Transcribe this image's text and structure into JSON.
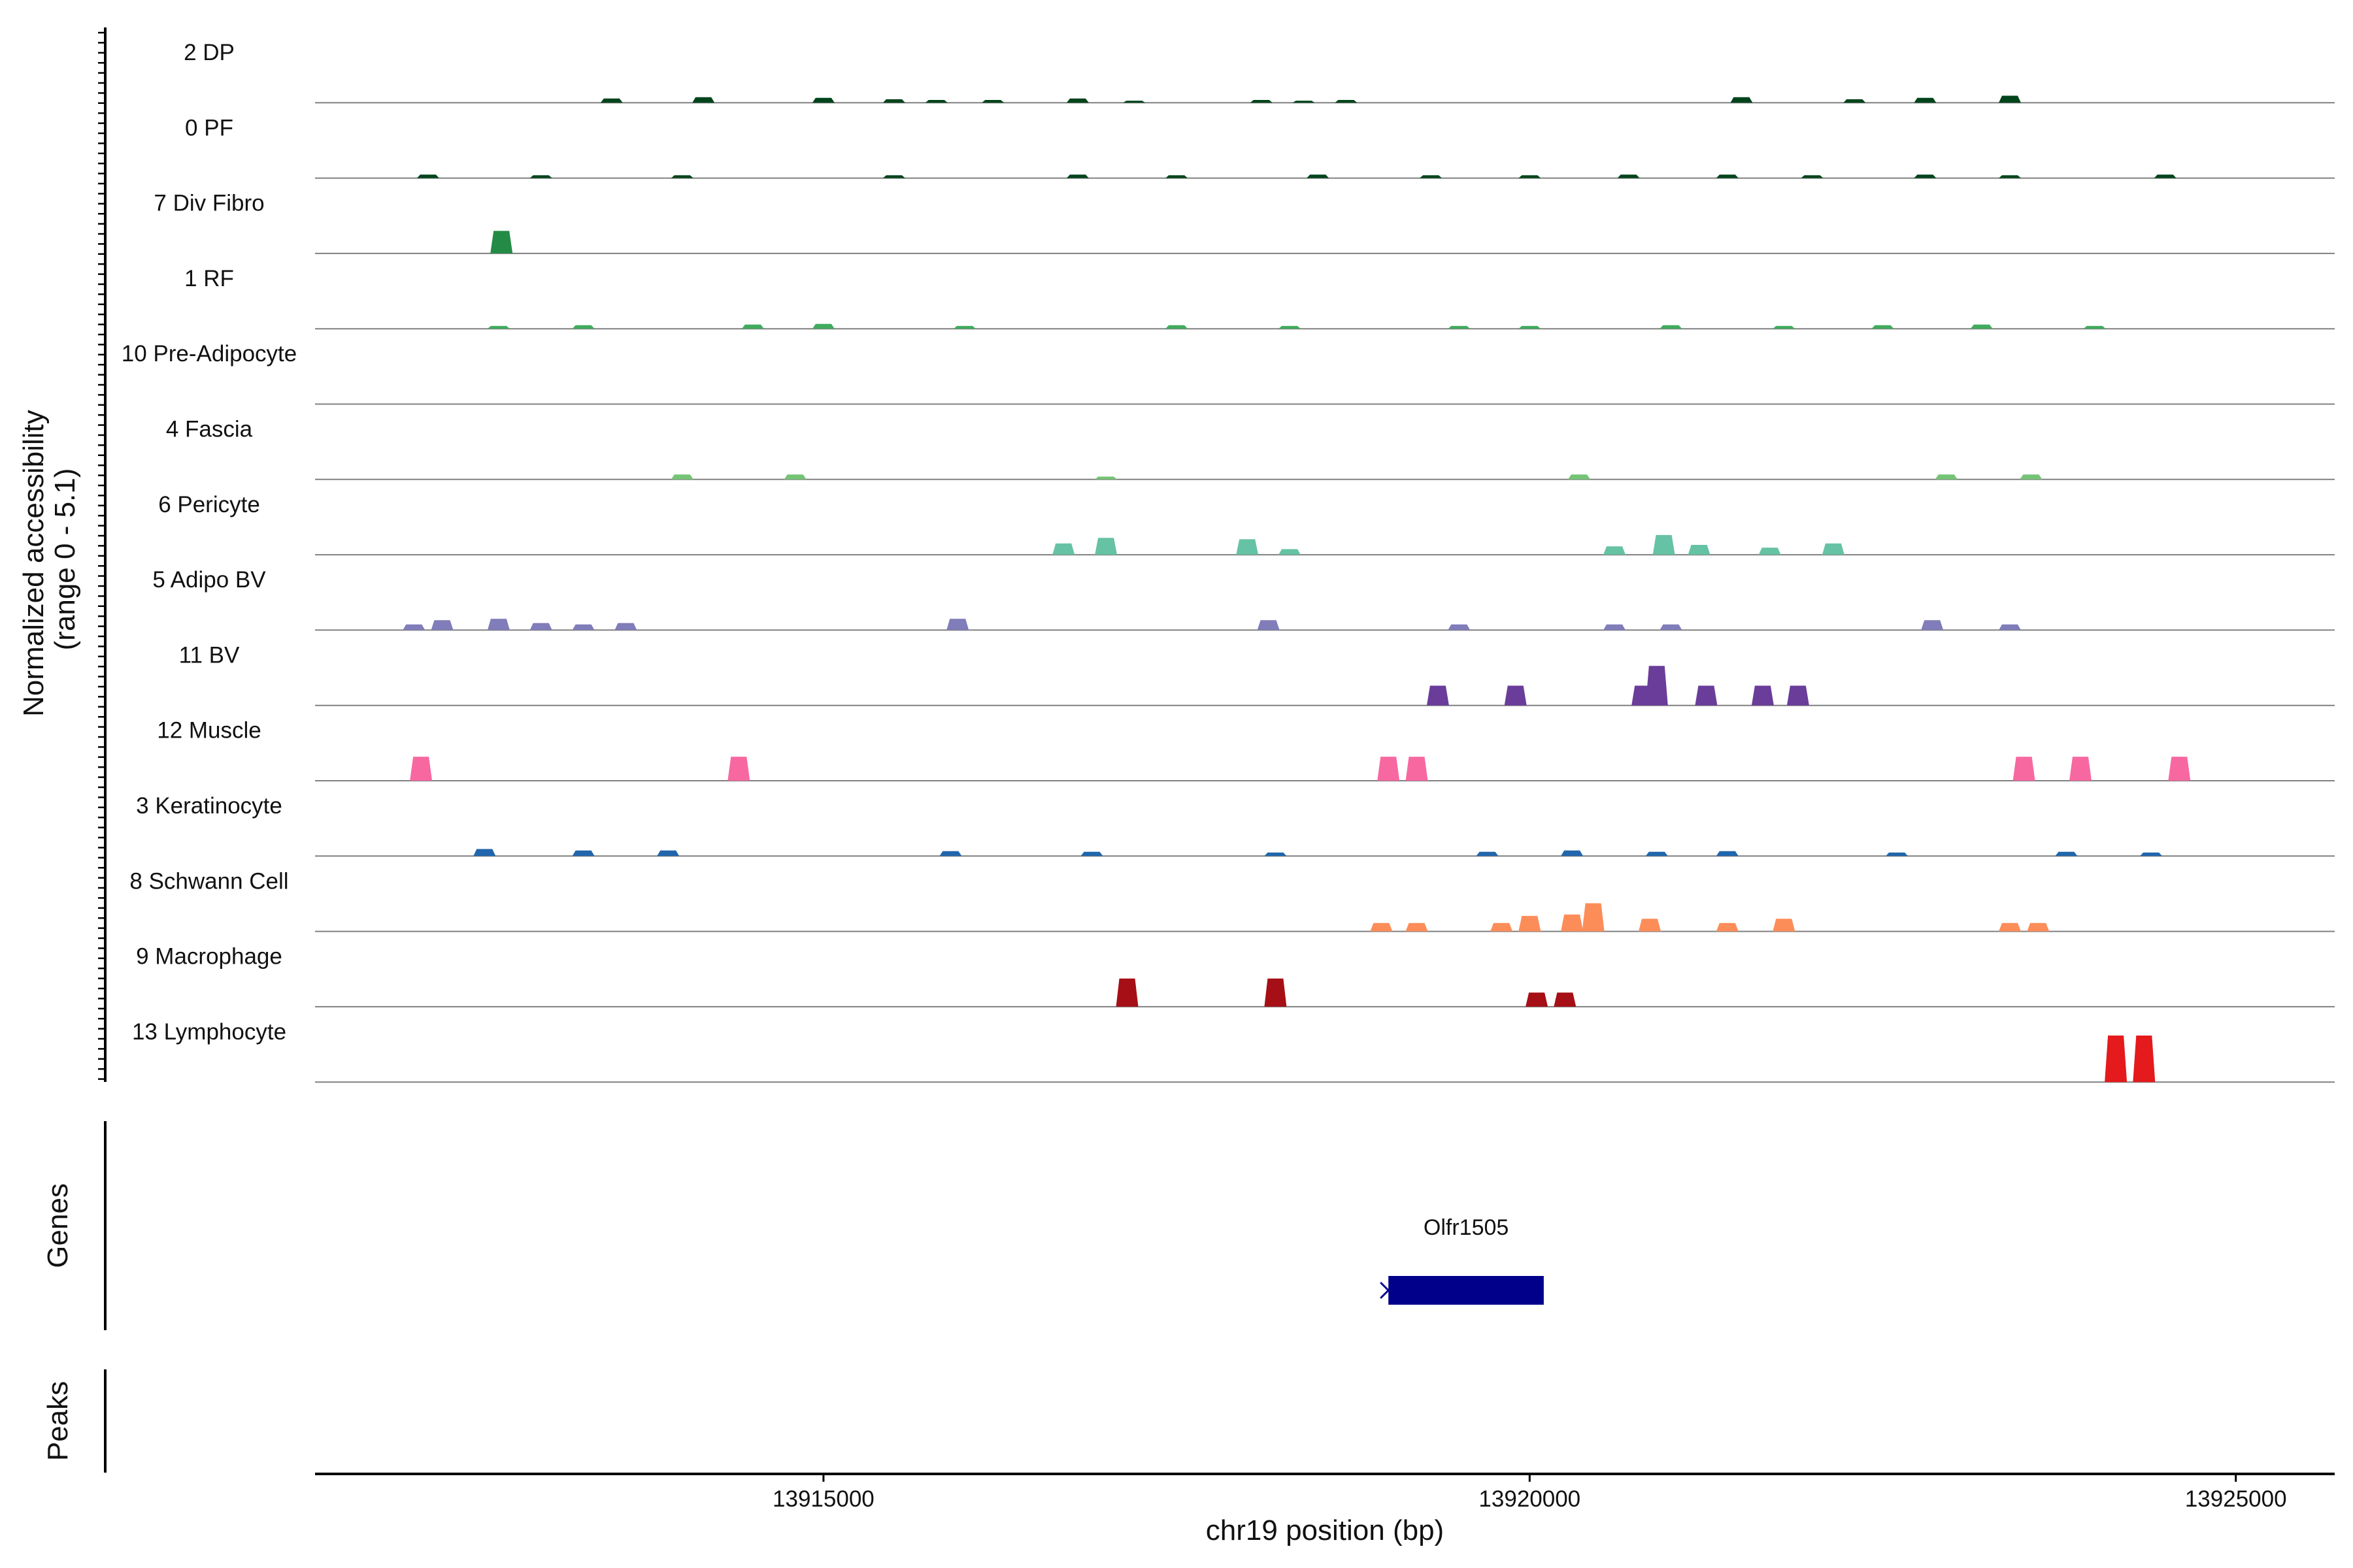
{
  "chart_data": {
    "type": "area",
    "title": "",
    "ylabel_lines": [
      "Normalized accessibility",
      "(range 0 - 5.1)"
    ],
    "ylim": [
      0,
      5.1
    ],
    "xlabel": "chr19 position (bp)",
    "xlim": [
      13911400,
      13925700
    ],
    "x_ticks": [
      13915000,
      13920000,
      13925000
    ],
    "x_tick_labels": [
      "13915000",
      "13920000",
      "13925000"
    ],
    "tracks": [
      {
        "label": "2 DP",
        "color": "#00441b",
        "peaks": [
          [
            13913500,
            0.3
          ],
          [
            13914150,
            0.4
          ],
          [
            13915000,
            0.35
          ],
          [
            13915500,
            0.25
          ],
          [
            13915800,
            0.2
          ],
          [
            13916200,
            0.2
          ],
          [
            13916800,
            0.3
          ],
          [
            13917200,
            0.15
          ],
          [
            13918100,
            0.2
          ],
          [
            13918400,
            0.15
          ],
          [
            13918700,
            0.2
          ],
          [
            13921500,
            0.4
          ],
          [
            13922300,
            0.25
          ],
          [
            13922800,
            0.35
          ],
          [
            13923400,
            0.5
          ]
        ]
      },
      {
        "label": "0 PF",
        "color": "#00441b",
        "peaks": [
          [
            13912200,
            0.25
          ],
          [
            13913000,
            0.2
          ],
          [
            13914000,
            0.2
          ],
          [
            13915500,
            0.2
          ],
          [
            13916800,
            0.25
          ],
          [
            13917500,
            0.2
          ],
          [
            13918500,
            0.25
          ],
          [
            13919300,
            0.2
          ],
          [
            13920000,
            0.2
          ],
          [
            13920700,
            0.25
          ],
          [
            13921400,
            0.25
          ],
          [
            13922000,
            0.2
          ],
          [
            13922800,
            0.25
          ],
          [
            13923400,
            0.2
          ],
          [
            13924500,
            0.25
          ]
        ]
      },
      {
        "label": "7 Div Fibro",
        "color": "#238b45",
        "peaks": [
          [
            13912720,
            1.6
          ]
        ]
      },
      {
        "label": "1 RF",
        "color": "#41ab5d",
        "peaks": [
          [
            13912700,
            0.2
          ],
          [
            13913300,
            0.25
          ],
          [
            13914500,
            0.3
          ],
          [
            13915000,
            0.35
          ],
          [
            13916000,
            0.2
          ],
          [
            13917500,
            0.25
          ],
          [
            13918300,
            0.2
          ],
          [
            13919500,
            0.2
          ],
          [
            13920000,
            0.2
          ],
          [
            13921000,
            0.25
          ],
          [
            13921800,
            0.2
          ],
          [
            13922500,
            0.25
          ],
          [
            13923200,
            0.3
          ],
          [
            13924000,
            0.2
          ]
        ]
      },
      {
        "label": "10 Pre-Adipocyte",
        "color": "#74c476",
        "peaks": []
      },
      {
        "label": "4 Fascia",
        "color": "#74c476",
        "peaks": [
          [
            13914000,
            0.35
          ],
          [
            13914800,
            0.35
          ],
          [
            13917000,
            0.2
          ],
          [
            13920350,
            0.35
          ],
          [
            13922950,
            0.35
          ],
          [
            13923550,
            0.35
          ]
        ]
      },
      {
        "label": "6 Pericyte",
        "color": "#66c2a4",
        "peaks": [
          [
            13916700,
            0.8
          ],
          [
            13917000,
            1.2
          ],
          [
            13918000,
            1.1
          ],
          [
            13918300,
            0.4
          ],
          [
            13920600,
            0.6
          ],
          [
            13920950,
            1.4
          ],
          [
            13921200,
            0.7
          ],
          [
            13921700,
            0.5
          ],
          [
            13922150,
            0.8
          ]
        ]
      },
      {
        "label": "5 Adipo BV",
        "color": "#807dba",
        "peaks": [
          [
            13912100,
            0.4
          ],
          [
            13912300,
            0.7
          ],
          [
            13912700,
            0.8
          ],
          [
            13913000,
            0.5
          ],
          [
            13913300,
            0.4
          ],
          [
            13913600,
            0.5
          ],
          [
            13915950,
            0.8
          ],
          [
            13918150,
            0.7
          ],
          [
            13919500,
            0.4
          ],
          [
            13920600,
            0.4
          ],
          [
            13921000,
            0.4
          ],
          [
            13922850,
            0.7
          ],
          [
            13923400,
            0.4
          ]
        ]
      },
      {
        "label": "11 BV",
        "color": "#6a3d9a",
        "peaks": [
          [
            13919350,
            1.4
          ],
          [
            13919900,
            1.4
          ],
          [
            13920800,
            1.4
          ],
          [
            13920900,
            2.8
          ],
          [
            13921250,
            1.4
          ],
          [
            13921650,
            1.4
          ],
          [
            13921900,
            1.4
          ]
        ]
      },
      {
        "label": "12 Muscle",
        "color": "#f768a1",
        "peaks": [
          [
            13912150,
            1.7
          ],
          [
            13914400,
            1.7
          ],
          [
            13919000,
            1.7
          ],
          [
            13919200,
            1.7
          ],
          [
            13923500,
            1.7
          ],
          [
            13923900,
            1.7
          ],
          [
            13924600,
            1.7
          ]
        ]
      },
      {
        "label": "3 Keratinocyte",
        "color": "#2166ac",
        "peaks": [
          [
            13912600,
            0.5
          ],
          [
            13913300,
            0.4
          ],
          [
            13913900,
            0.4
          ],
          [
            13915900,
            0.35
          ],
          [
            13916900,
            0.3
          ],
          [
            13918200,
            0.25
          ],
          [
            13919700,
            0.3
          ],
          [
            13920300,
            0.4
          ],
          [
            13920900,
            0.3
          ],
          [
            13921400,
            0.35
          ],
          [
            13922600,
            0.25
          ],
          [
            13923800,
            0.3
          ],
          [
            13924400,
            0.25
          ]
        ]
      },
      {
        "label": "8 Schwann Cell",
        "color": "#fc8d59",
        "peaks": [
          [
            13918950,
            0.6
          ],
          [
            13919200,
            0.6
          ],
          [
            13919800,
            0.6
          ],
          [
            13920000,
            1.1
          ],
          [
            13920300,
            1.2
          ],
          [
            13920450,
            2.0
          ],
          [
            13920850,
            0.9
          ],
          [
            13921400,
            0.6
          ],
          [
            13921800,
            0.9
          ],
          [
            13923400,
            0.6
          ],
          [
            13923600,
            0.6
          ]
        ]
      },
      {
        "label": "9 Macrophage",
        "color": "#a50f15",
        "peaks": [
          [
            13917150,
            2.0
          ],
          [
            13918200,
            2.0
          ],
          [
            13920050,
            1.0
          ],
          [
            13920250,
            1.0
          ]
        ]
      },
      {
        "label": "13 Lymphocyte",
        "color": "#e41a1c",
        "peaks": [
          [
            13924150,
            3.3
          ],
          [
            13924350,
            3.3
          ]
        ]
      }
    ],
    "genes_label": "Genes",
    "genes": [
      {
        "name": "Olfr1505",
        "start": 13919000,
        "end": 13920100,
        "color": "#00008b"
      }
    ],
    "peaks_label": "Peaks"
  }
}
